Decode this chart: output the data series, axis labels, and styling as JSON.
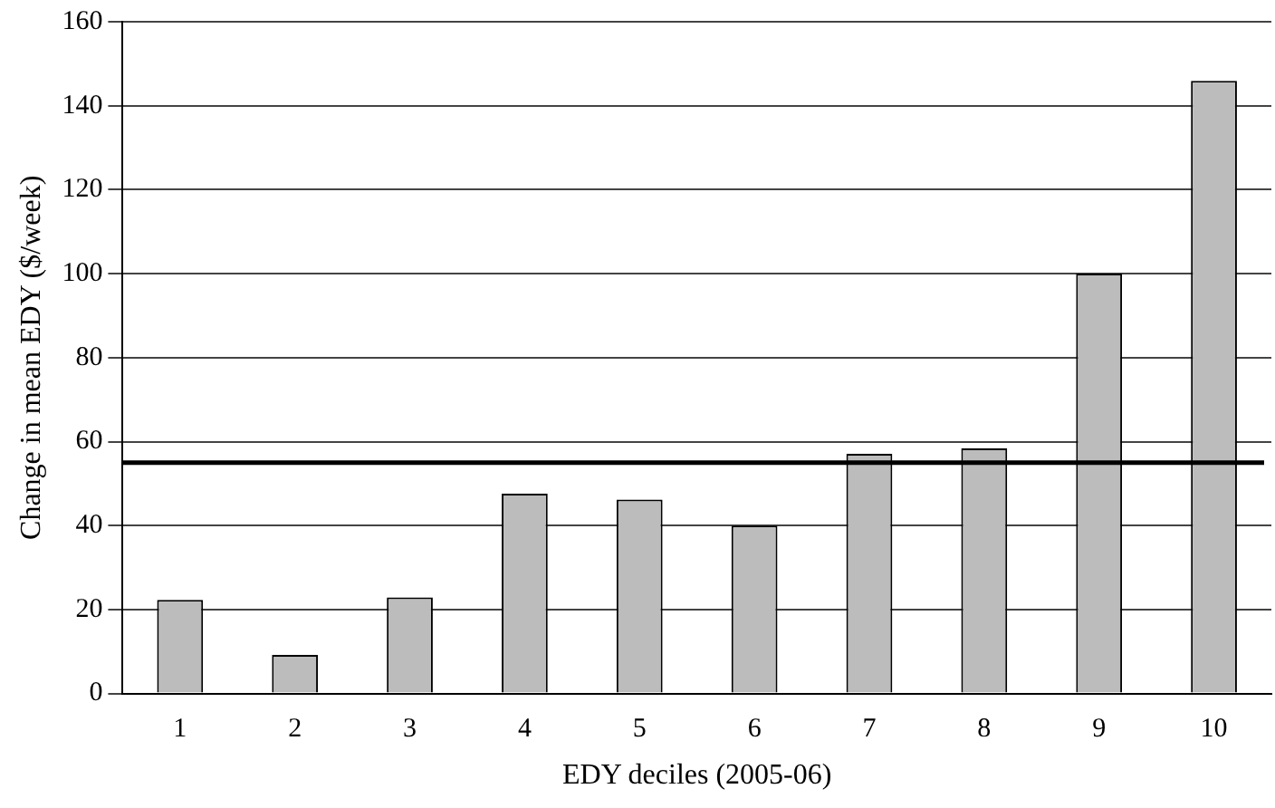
{
  "chart_data": {
    "type": "bar",
    "xlabel": "EDY deciles (2005-06)",
    "ylabel": "Change in mean EDY ($/week)",
    "categories": [
      "1",
      "2",
      "3",
      "4",
      "5",
      "6",
      "7",
      "8",
      "9",
      "10"
    ],
    "values": [
      22.3,
      9.2,
      22.9,
      47.6,
      46.2,
      40,
      57.1,
      58.4,
      100,
      145.9
    ],
    "color": "#bbbcbb",
    "ylim": [
      0,
      160
    ],
    "yticks": [
      0,
      20,
      40,
      60,
      80,
      100,
      120,
      140,
      160
    ],
    "grid": "y",
    "ref_lines": [
      {
        "axis": "y",
        "value": 55,
        "color": "#000000"
      }
    ]
  }
}
